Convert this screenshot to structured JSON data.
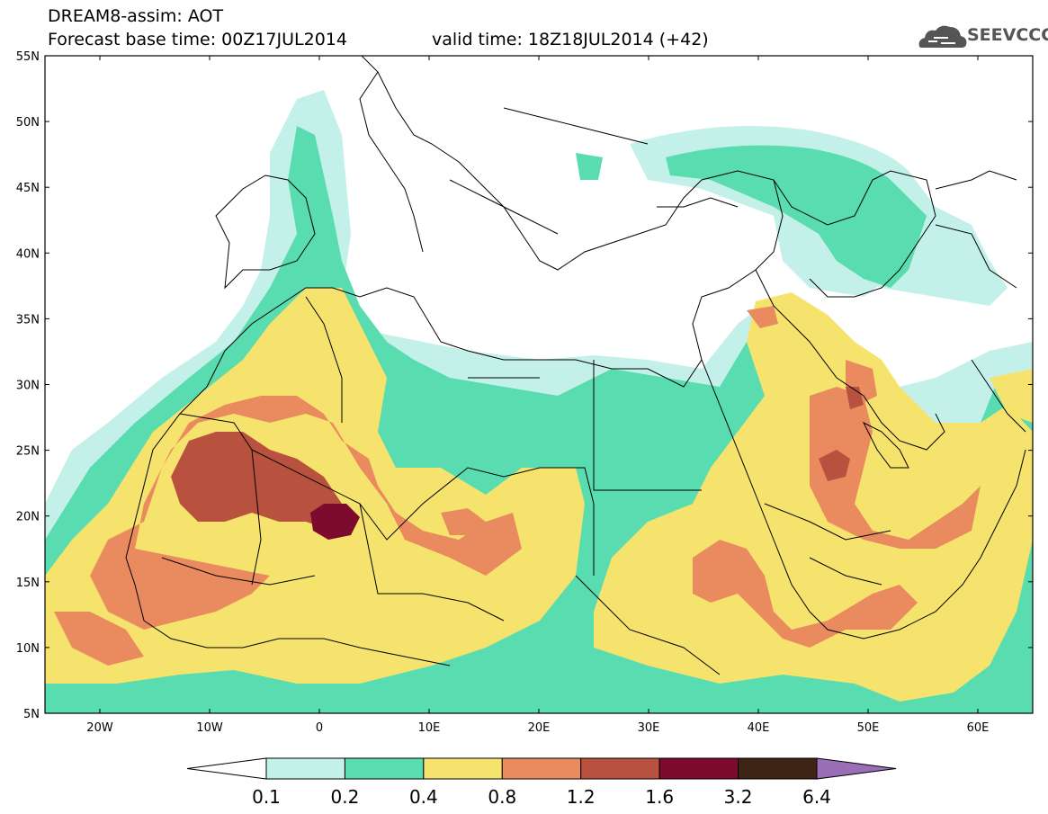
{
  "header": {
    "title_line1": "DREAM8-assim: AOT",
    "title_line2": "Forecast base time: 00Z17JUL2014",
    "valid_time": "valid time: 18Z18JUL2014 (+42)",
    "logo_text": "SEEVCCC"
  },
  "map": {
    "lat_labels": [
      "55N",
      "50N",
      "45N",
      "40N",
      "35N",
      "30N",
      "25N",
      "20N",
      "15N",
      "10N",
      "5N"
    ],
    "lon_labels": [
      "20W",
      "10W",
      "0",
      "10E",
      "20E",
      "30E",
      "40E",
      "50E",
      "60E"
    ],
    "lat_range": [
      5,
      55
    ],
    "lon_range": [
      -25,
      65
    ]
  },
  "colorbar": {
    "labels": [
      "0.1",
      "0.2",
      "0.4",
      "0.8",
      "1.2",
      "1.6",
      "3.2",
      "6.4"
    ],
    "colors": [
      "#ffffff",
      "#c4f0ea",
      "#58dcb0",
      "#f5e36d",
      "#e98b5f",
      "#b8523f",
      "#7c0b2e",
      "#3d2414",
      "#9b6fb8"
    ]
  }
}
